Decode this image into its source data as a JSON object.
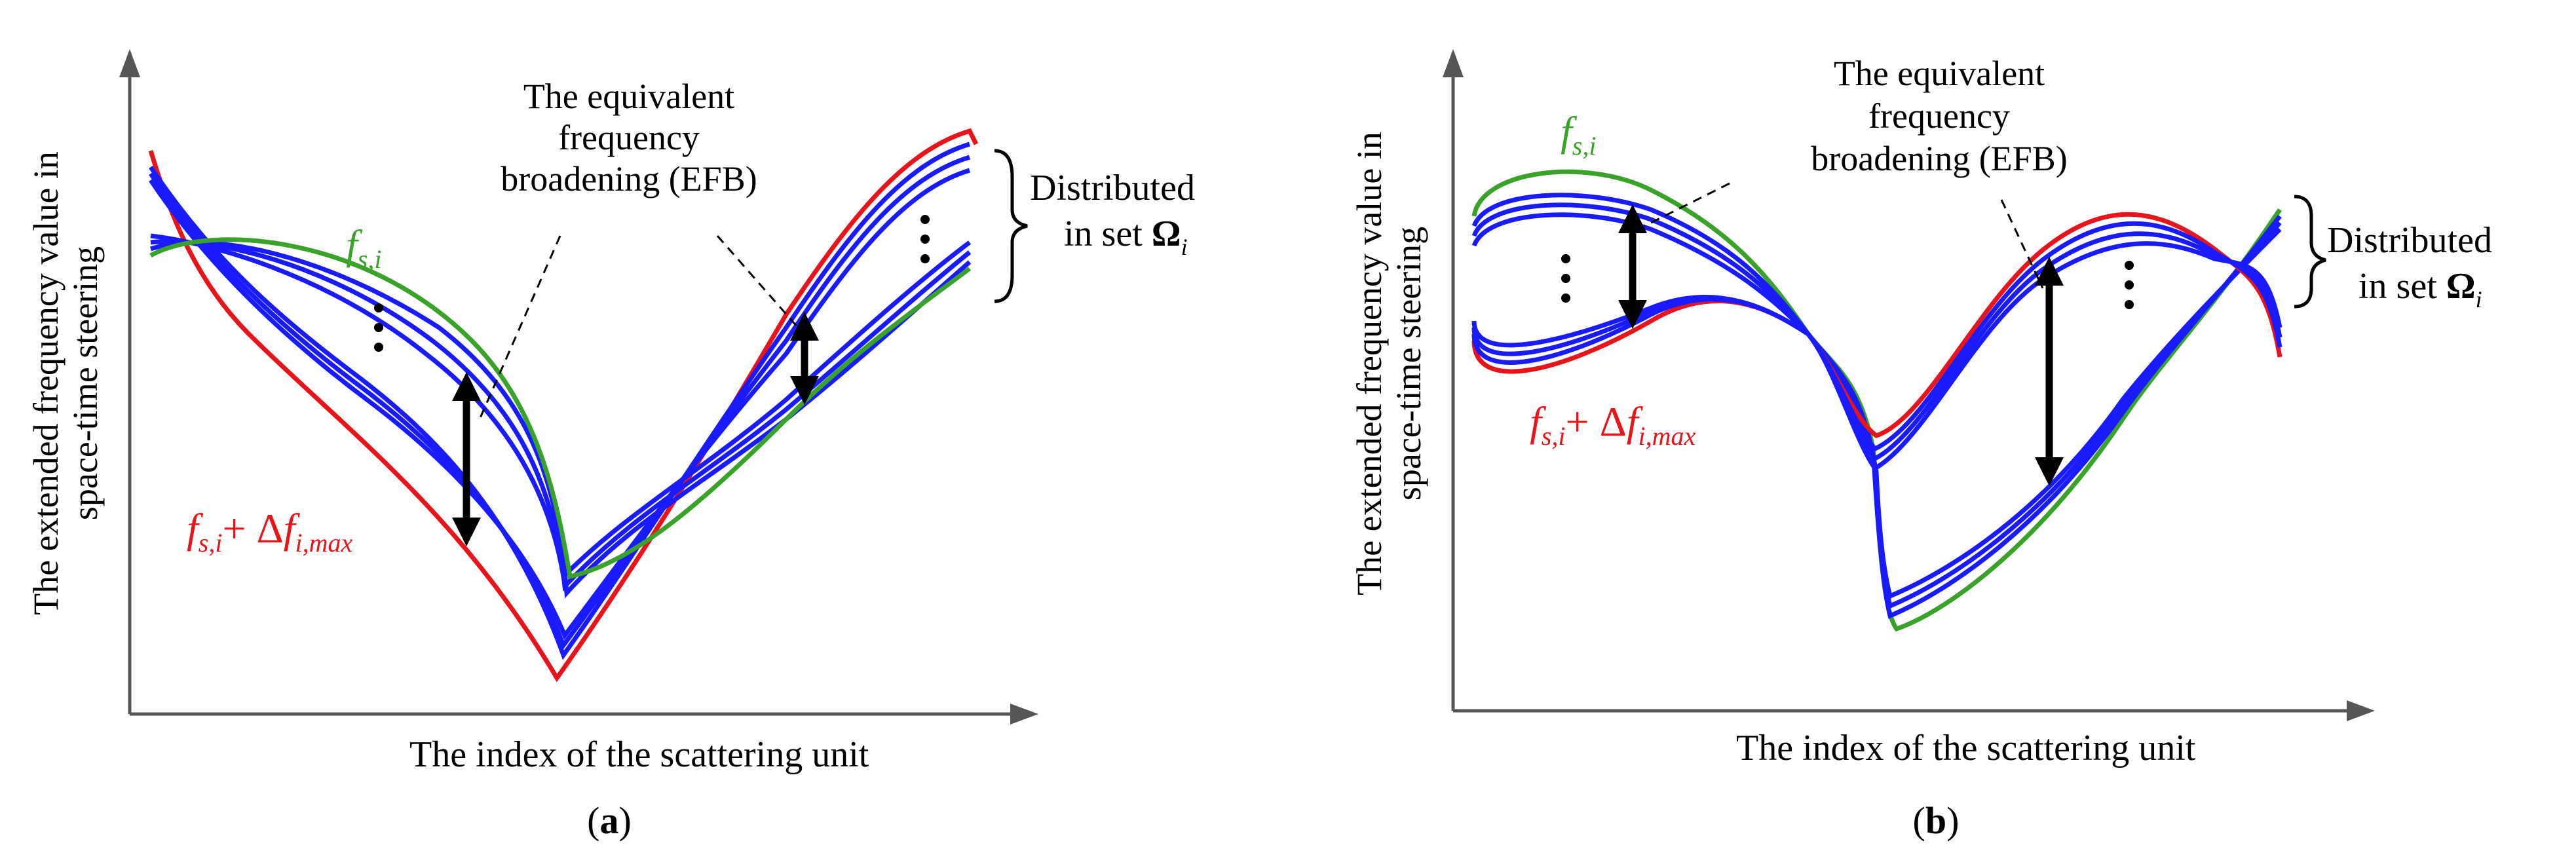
{
  "panels": [
    {
      "caption": "(a)",
      "ylabel_line1": "The extended frequency value in",
      "ylabel_line2": "space-time steering",
      "xlabel": "The index of the scattering unit",
      "efb_line1": "The equivalent",
      "efb_line2": "frequency",
      "efb_line3": "broadening (EFB)",
      "dist_line1": "Distributed",
      "dist_line2": "in set",
      "set_symbol": "Ω",
      "set_sub": "i",
      "fs_main": "f",
      "fs_sub": "s,i",
      "delta_main": "f",
      "delta_sub": "s,i",
      "delta_op": "+ Δ",
      "delta_f": "f",
      "delta_fsub": "i,max"
    },
    {
      "caption": "(b)",
      "ylabel_line1": "The extended frequency value in",
      "ylabel_line2": "space-time steering",
      "xlabel": "The index of the scattering unit",
      "efb_line1": "The equivalent",
      "efb_line2": "frequency",
      "efb_line3": "broadening (EFB)",
      "dist_line1": "Distributed",
      "dist_line2": "in set",
      "set_symbol": "Ω",
      "set_sub": "i",
      "fs_main": "f",
      "fs_sub": "s,i",
      "delta_main": "f",
      "delta_sub": "s,i",
      "delta_op": "+ Δ",
      "delta_f": "f",
      "delta_fsub": "i,max"
    }
  ],
  "colors": {
    "green": "#3aa12a",
    "red": "#e8141b",
    "blue": "#1a1aff",
    "black": "#000000"
  }
}
